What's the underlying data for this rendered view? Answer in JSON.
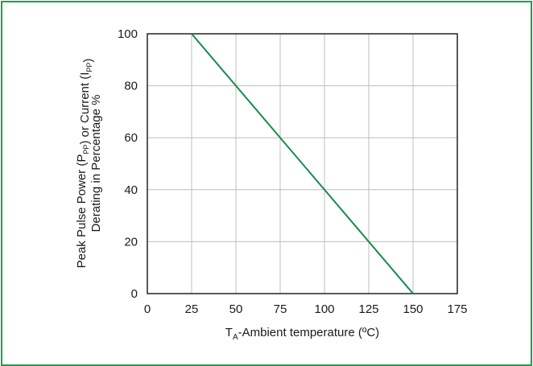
{
  "chart_data": {
    "type": "line",
    "title": "",
    "xlabel": {
      "main": "T",
      "sub": "A",
      "rest": "-Ambient temperature (ºC)"
    },
    "ylabel": {
      "line1": [
        {
          "t": "Peak Pulse Power (P",
          "sub": false
        },
        {
          "t": "PP",
          "sub": true
        },
        {
          "t": ") or Current (I",
          "sub": false
        },
        {
          "t": "PP",
          "sub": true
        },
        {
          "t": ")",
          "sub": false
        }
      ],
      "line2": "Derating in Percentage %"
    },
    "xlim": [
      0,
      175
    ],
    "ylim": [
      0,
      100
    ],
    "x_ticks": [
      "0",
      "25",
      "50",
      "75",
      "100",
      "125",
      "150",
      "175"
    ],
    "y_ticks": [
      "0",
      "20",
      "40",
      "60",
      "80",
      "100"
    ],
    "grid": true,
    "series": [
      {
        "x": [
          25,
          150
        ],
        "y": [
          100,
          0
        ],
        "color": "#1a8a4a"
      }
    ]
  },
  "colors": {
    "frame": "#17a24b",
    "grid": "#bdbdbd",
    "line": "#1a8a4a"
  }
}
